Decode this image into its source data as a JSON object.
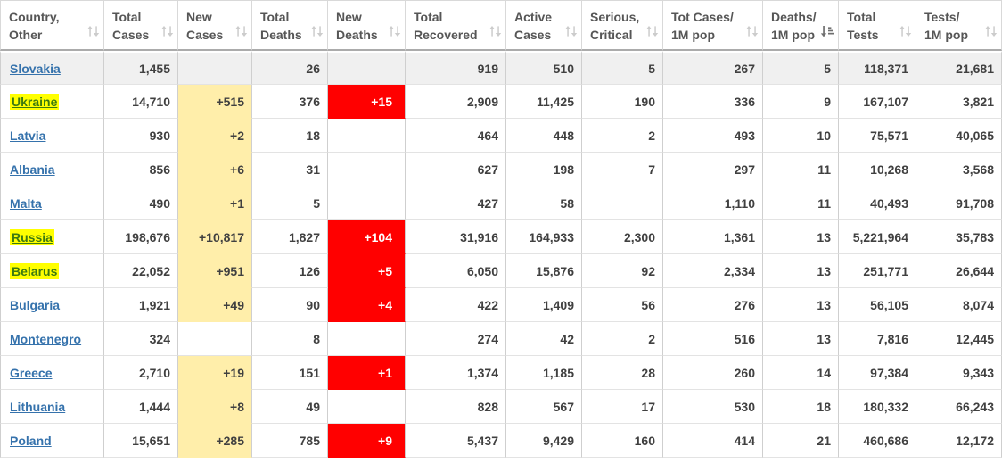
{
  "table": {
    "columns": [
      {
        "field": "country",
        "label": "Country,\nOther",
        "sort": "none"
      },
      {
        "field": "total_cases",
        "label": "Total\nCases",
        "sort": "none"
      },
      {
        "field": "new_cases",
        "label": "New\nCases",
        "sort": "none"
      },
      {
        "field": "total_deaths",
        "label": "Total\nDeaths",
        "sort": "none"
      },
      {
        "field": "new_deaths",
        "label": "New\nDeaths",
        "sort": "none"
      },
      {
        "field": "total_recovered",
        "label": "Total\nRecovered",
        "sort": "none"
      },
      {
        "field": "active_cases",
        "label": "Active\nCases",
        "sort": "none"
      },
      {
        "field": "serious_critical",
        "label": "Serious,\nCritical",
        "sort": "none"
      },
      {
        "field": "tot_cases_1m",
        "label": "Tot Cases/\n1M pop",
        "sort": "none"
      },
      {
        "field": "deaths_1m",
        "label": "Deaths/\n1M pop",
        "sort": "asc"
      },
      {
        "field": "total_tests",
        "label": "Total\nTests",
        "sort": "none"
      },
      {
        "field": "tests_1m",
        "label": "Tests/\n1M pop",
        "sort": "none"
      }
    ],
    "rows": [
      {
        "country": "Slovakia",
        "highlighted": false,
        "shaded": true,
        "total_cases": "1,455",
        "new_cases": "",
        "total_deaths": "26",
        "new_deaths": "",
        "total_recovered": "919",
        "active_cases": "510",
        "serious_critical": "5",
        "tot_cases_1m": "267",
        "deaths_1m": "5",
        "total_tests": "118,371",
        "tests_1m": "21,681"
      },
      {
        "country": "Ukraine",
        "highlighted": true,
        "shaded": false,
        "total_cases": "14,710",
        "new_cases": "+515",
        "total_deaths": "376",
        "new_deaths": "+15",
        "total_recovered": "2,909",
        "active_cases": "11,425",
        "serious_critical": "190",
        "tot_cases_1m": "336",
        "deaths_1m": "9",
        "total_tests": "167,107",
        "tests_1m": "3,821"
      },
      {
        "country": "Latvia",
        "highlighted": false,
        "shaded": false,
        "total_cases": "930",
        "new_cases": "+2",
        "total_deaths": "18",
        "new_deaths": "",
        "total_recovered": "464",
        "active_cases": "448",
        "serious_critical": "2",
        "tot_cases_1m": "493",
        "deaths_1m": "10",
        "total_tests": "75,571",
        "tests_1m": "40,065"
      },
      {
        "country": "Albania",
        "highlighted": false,
        "shaded": false,
        "total_cases": "856",
        "new_cases": "+6",
        "total_deaths": "31",
        "new_deaths": "",
        "total_recovered": "627",
        "active_cases": "198",
        "serious_critical": "7",
        "tot_cases_1m": "297",
        "deaths_1m": "11",
        "total_tests": "10,268",
        "tests_1m": "3,568"
      },
      {
        "country": "Malta",
        "highlighted": false,
        "shaded": false,
        "total_cases": "490",
        "new_cases": "+1",
        "total_deaths": "5",
        "new_deaths": "",
        "total_recovered": "427",
        "active_cases": "58",
        "serious_critical": "",
        "tot_cases_1m": "1,110",
        "deaths_1m": "11",
        "total_tests": "40,493",
        "tests_1m": "91,708"
      },
      {
        "country": "Russia",
        "highlighted": true,
        "shaded": false,
        "total_cases": "198,676",
        "new_cases": "+10,817",
        "total_deaths": "1,827",
        "new_deaths": "+104",
        "total_recovered": "31,916",
        "active_cases": "164,933",
        "serious_critical": "2,300",
        "tot_cases_1m": "1,361",
        "deaths_1m": "13",
        "total_tests": "5,221,964",
        "tests_1m": "35,783"
      },
      {
        "country": "Belarus",
        "highlighted": true,
        "shaded": false,
        "total_cases": "22,052",
        "new_cases": "+951",
        "total_deaths": "126",
        "new_deaths": "+5",
        "total_recovered": "6,050",
        "active_cases": "15,876",
        "serious_critical": "92",
        "tot_cases_1m": "2,334",
        "deaths_1m": "13",
        "total_tests": "251,771",
        "tests_1m": "26,644"
      },
      {
        "country": "Bulgaria",
        "highlighted": false,
        "shaded": false,
        "total_cases": "1,921",
        "new_cases": "+49",
        "total_deaths": "90",
        "new_deaths": "+4",
        "total_recovered": "422",
        "active_cases": "1,409",
        "serious_critical": "56",
        "tot_cases_1m": "276",
        "deaths_1m": "13",
        "total_tests": "56,105",
        "tests_1m": "8,074"
      },
      {
        "country": "Montenegro",
        "highlighted": false,
        "shaded": false,
        "total_cases": "324",
        "new_cases": "",
        "total_deaths": "8",
        "new_deaths": "",
        "total_recovered": "274",
        "active_cases": "42",
        "serious_critical": "2",
        "tot_cases_1m": "516",
        "deaths_1m": "13",
        "total_tests": "7,816",
        "tests_1m": "12,445"
      },
      {
        "country": "Greece",
        "highlighted": false,
        "shaded": false,
        "total_cases": "2,710",
        "new_cases": "+19",
        "total_deaths": "151",
        "new_deaths": "+1",
        "total_recovered": "1,374",
        "active_cases": "1,185",
        "serious_critical": "28",
        "tot_cases_1m": "260",
        "deaths_1m": "14",
        "total_tests": "97,384",
        "tests_1m": "9,343"
      },
      {
        "country": "Lithuania",
        "highlighted": false,
        "shaded": false,
        "total_cases": "1,444",
        "new_cases": "+8",
        "total_deaths": "49",
        "new_deaths": "",
        "total_recovered": "828",
        "active_cases": "567",
        "serious_critical": "17",
        "tot_cases_1m": "530",
        "deaths_1m": "18",
        "total_tests": "180,332",
        "tests_1m": "66,243"
      },
      {
        "country": "Poland",
        "highlighted": false,
        "shaded": false,
        "total_cases": "15,651",
        "new_cases": "+285",
        "total_deaths": "785",
        "new_deaths": "+9",
        "total_recovered": "5,437",
        "active_cases": "9,429",
        "serious_critical": "160",
        "tot_cases_1m": "414",
        "deaths_1m": "21",
        "total_tests": "460,686",
        "tests_1m": "12,172"
      }
    ]
  },
  "colors": {
    "link_blue": "#3572ac",
    "highlight_text_green": "#3c7a10",
    "highlight_yellow": "#ffff00",
    "new_cases_yellow": "#ffeeaa",
    "new_deaths_red": "#ff0000",
    "shaded_row_gray": "#f0f0f0",
    "number_text": "#404040",
    "header_text": "#565656"
  }
}
